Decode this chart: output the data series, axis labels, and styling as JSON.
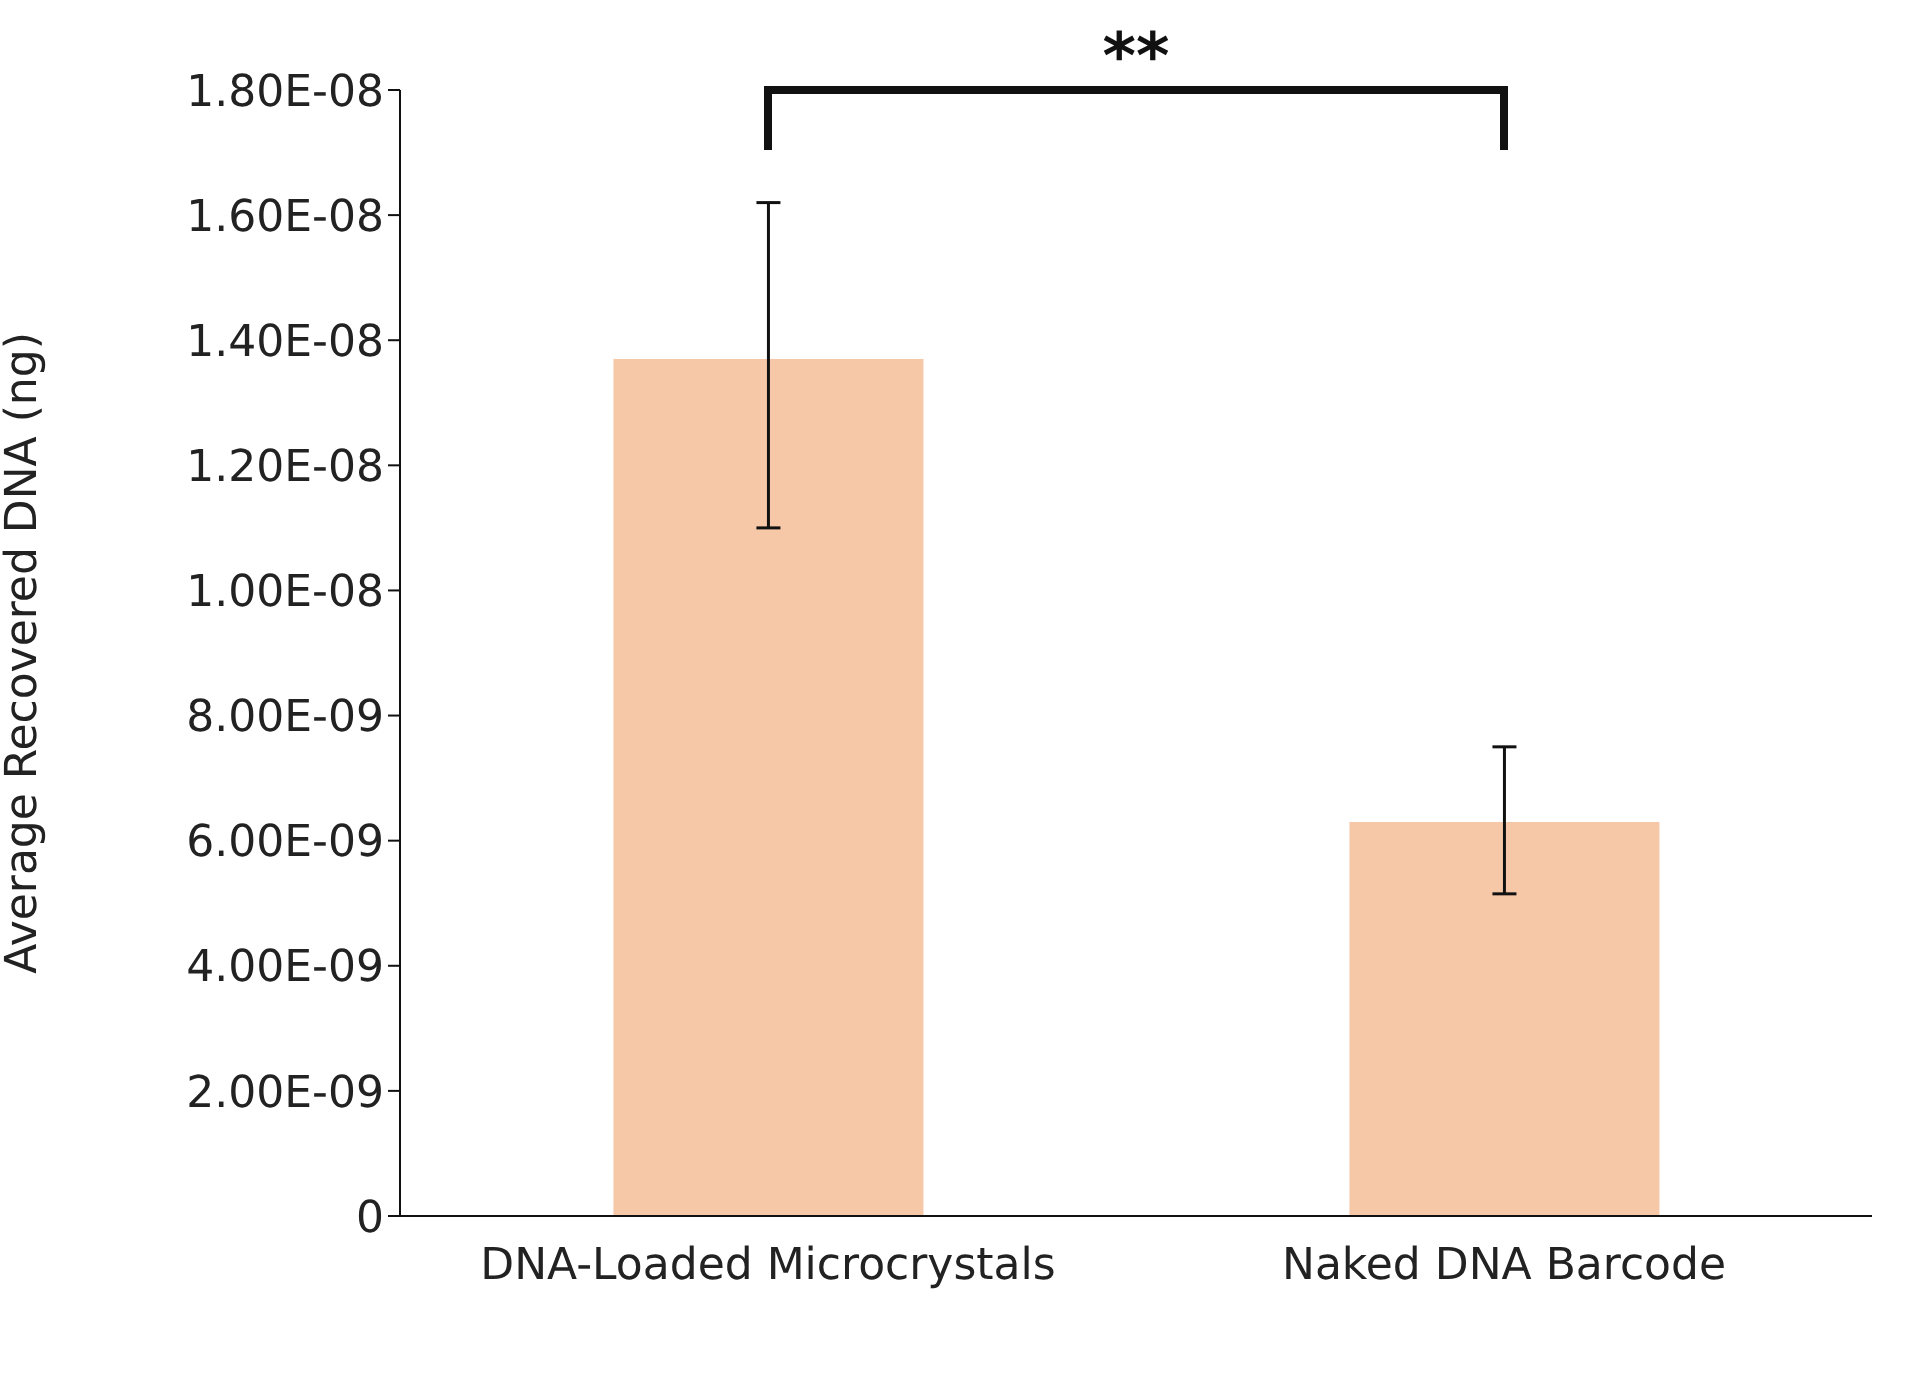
{
  "chart_data": {
    "type": "bar",
    "ylabel": "Average Recovered DNA (ng)",
    "categories": [
      "DNA-Loaded Microcrystals",
      "Naked DNA Barcode"
    ],
    "values": [
      1.37e-08,
      6.3e-09
    ],
    "errors": [
      [
        1.1e-08,
        1.62e-08
      ],
      [
        5.15e-09,
        7.5e-09
      ]
    ],
    "color": "#f7c8a8",
    "ylim": [
      0,
      1.8e-08
    ],
    "yticks": [
      {
        "value": 0,
        "label": "0"
      },
      {
        "value": 2e-09,
        "label": "2.00E-09"
      },
      {
        "value": 4e-09,
        "label": "4.00E-09"
      },
      {
        "value": 6e-09,
        "label": "6.00E-09"
      },
      {
        "value": 8e-09,
        "label": "8.00E-09"
      },
      {
        "value": 1e-08,
        "label": "1.00E-08"
      },
      {
        "value": 1.2e-08,
        "label": "1.20E-08"
      },
      {
        "value": 1.4e-08,
        "label": "1.40E-08"
      },
      {
        "value": 1.6e-08,
        "label": "1.60E-08"
      },
      {
        "value": 1.8e-08,
        "label": "1.80E-08"
      }
    ],
    "annotations": [
      "**"
    ]
  }
}
